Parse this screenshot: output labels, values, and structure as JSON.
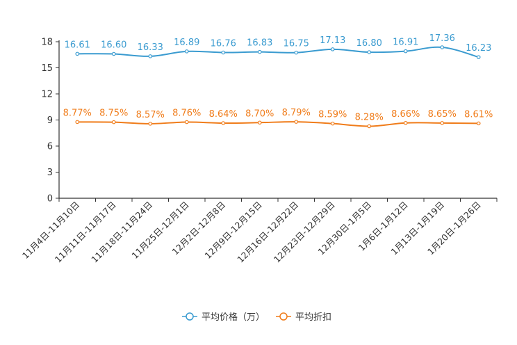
{
  "chart_data": {
    "type": "line",
    "categories": [
      "11月4日-11月10日",
      "11月11日-11月17日",
      "11月18日-11月24日",
      "11月25日-12月1日",
      "12月2日-12月8日",
      "12月9日-12月15日",
      "12月16日-12月22日",
      "12月23日-12月29日",
      "12月30日-1月5日",
      "1月6日-1月12日",
      "1月13日-1月19日",
      "1月20日-1月26日"
    ],
    "ylim": [
      0,
      18
    ],
    "yticks": [
      0,
      3,
      6,
      9,
      12,
      15,
      18
    ],
    "series": [
      {
        "name": "平均价格（万）",
        "color": "#3a9bd0",
        "values": [
          16.61,
          16.6,
          16.33,
          16.89,
          16.76,
          16.83,
          16.75,
          17.13,
          16.8,
          16.91,
          17.36,
          16.23
        ],
        "labels": [
          "16.61",
          "16.60",
          "16.33",
          "16.89",
          "16.76",
          "16.83",
          "16.75",
          "17.13",
          "16.80",
          "16.91",
          "17.36",
          "16.23"
        ]
      },
      {
        "name": "平均折扣",
        "color": "#f07c1a",
        "values": [
          8.77,
          8.75,
          8.57,
          8.76,
          8.64,
          8.7,
          8.79,
          8.59,
          8.28,
          8.66,
          8.65,
          8.61
        ],
        "labels": [
          "8.77%",
          "8.75%",
          "8.57%",
          "8.76%",
          "8.64%",
          "8.70%",
          "8.79%",
          "8.59%",
          "8.28%",
          "8.66%",
          "8.65%",
          "8.61%"
        ]
      }
    ]
  }
}
